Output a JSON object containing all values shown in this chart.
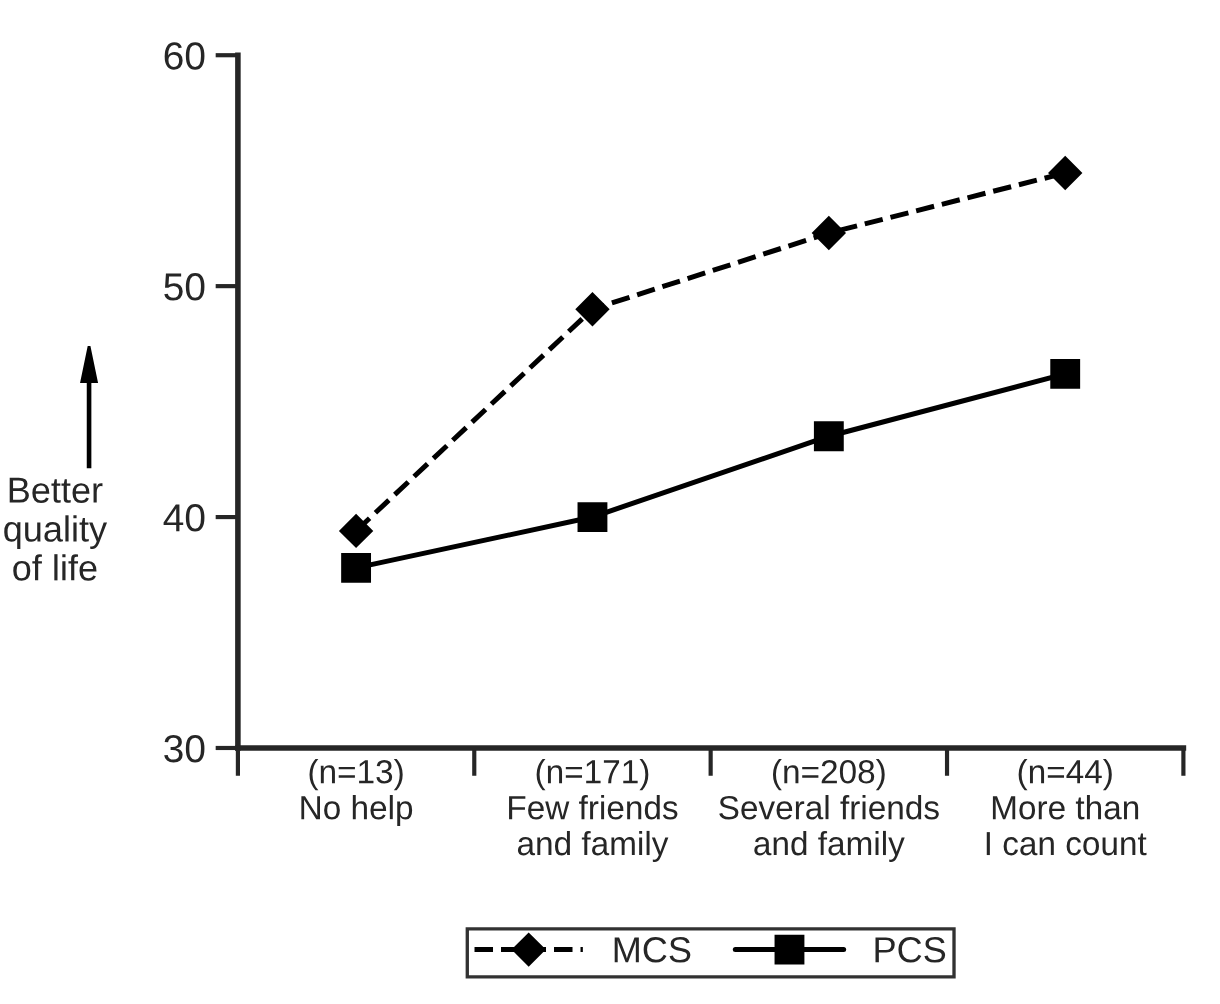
{
  "chart_data": {
    "type": "line",
    "ylabel": "Better\nquality\nof life",
    "categories": [
      "(n=13)\nNo help",
      "(n=171)\nFew friends\nand family",
      "(n=208)\nSeveral friends\nand family",
      "(n=44)\nMore than\nI can count"
    ],
    "series": [
      {
        "name": "MCS",
        "color": "#000000",
        "marker": "diamond",
        "line_style": "dashed",
        "values": [
          39.4,
          49.0,
          52.3,
          54.9
        ]
      },
      {
        "name": "PCS",
        "color": "#000000",
        "marker": "square",
        "line_style": "solid",
        "values": [
          37.8,
          40.0,
          43.5,
          46.2
        ]
      }
    ],
    "ylim": [
      30,
      60
    ],
    "yticks": [
      30,
      40,
      50,
      60
    ],
    "grid": false,
    "legend": "bottom"
  }
}
